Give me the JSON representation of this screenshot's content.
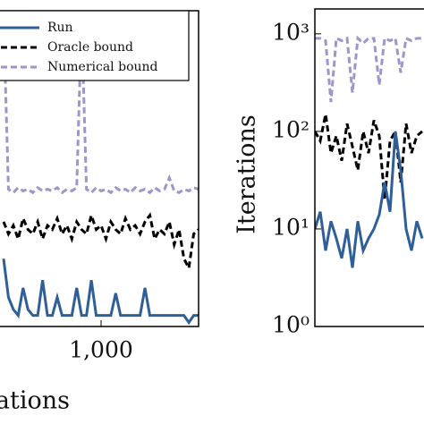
{
  "chart_data": [
    {
      "type": "line",
      "xlabel": "Iterations",
      "ylog": true,
      "ylim": [
        1,
        1800
      ],
      "xlim": [
        0,
        1200
      ],
      "xticks": [
        {
          "value": 1000,
          "label": "1,000"
        }
      ],
      "legend": "upper right",
      "x": [
        800,
        810,
        820,
        830,
        840,
        850,
        860,
        870,
        880,
        890,
        900,
        910,
        920,
        930,
        940,
        950,
        960,
        970,
        980,
        990,
        1000,
        1010,
        1020,
        1030,
        1040,
        1050,
        1060,
        1070,
        1080,
        1090,
        1100,
        1110,
        1120,
        1130,
        1140,
        1150,
        1160,
        1170,
        1180,
        1190,
        1200
      ],
      "series": [
        {
          "name": "Run",
          "color": "#2f5f98",
          "dash": false,
          "values": [
            5,
            2,
            1.5,
            1.3,
            2.5,
            1.5,
            1.3,
            1.3,
            3,
            1.3,
            1.3,
            2,
            1.3,
            1.3,
            1.3,
            2.5,
            1.3,
            1.3,
            3,
            1.3,
            1.3,
            1.3,
            1.3,
            2.2,
            1.3,
            1.3,
            1.3,
            1.3,
            1.3,
            2.5,
            1.3,
            1.3,
            1.3,
            1.3,
            1.3,
            1.3,
            1.3,
            1.3,
            1.1,
            1.3,
            1.3
          ]
        },
        {
          "name": "Oracle bound",
          "color": "#000000",
          "dash": true,
          "values": [
            12,
            9,
            11,
            8,
            13,
            10,
            9,
            12,
            8,
            11,
            10,
            13,
            9,
            11,
            8,
            12,
            10,
            9,
            14,
            10,
            11,
            8,
            12,
            10,
            9,
            13,
            10,
            11,
            9,
            12,
            14,
            8,
            10,
            9,
            12,
            7,
            10,
            5,
            4,
            9,
            10
          ]
        },
        {
          "name": "Numerical bound",
          "color": "#9c97c8",
          "dash": true,
          "values": [
            1500,
            26,
            24,
            27,
            25,
            26,
            24,
            27,
            25,
            26,
            25,
            27,
            24,
            26,
            25,
            27,
            1500,
            26,
            24,
            27,
            25,
            26,
            24,
            27,
            25,
            26,
            24,
            27,
            25,
            26,
            24,
            27,
            25,
            26,
            34,
            25,
            24,
            26,
            25,
            27,
            26
          ]
        }
      ]
    },
    {
      "type": "line",
      "ylabel": "Iterations",
      "ylog": true,
      "ylim": [
        1,
        1800
      ],
      "xlim": [
        0,
        100
      ],
      "yticks": [
        {
          "value": 1,
          "label": "10⁰"
        },
        {
          "value": 10,
          "label": "10¹"
        },
        {
          "value": 100,
          "label": "10²"
        },
        {
          "value": 1000,
          "label": "10³"
        }
      ],
      "x": [
        0,
        2,
        4,
        6,
        8,
        10,
        12,
        14,
        16,
        18,
        20,
        22,
        24,
        26,
        28,
        30,
        32,
        34,
        36,
        38,
        40
      ],
      "series": [
        {
          "color": "#9c97c8",
          "dash": true,
          "values": [
            900,
            900,
            850,
            200,
            900,
            850,
            900,
            250,
            900,
            800,
            900,
            900,
            300,
            900,
            850,
            900,
            400,
            900,
            850,
            900,
            900
          ]
        },
        {
          "color": "#000000",
          "dash": true,
          "values": [
            100,
            80,
            150,
            60,
            90,
            50,
            120,
            70,
            40,
            100,
            60,
            130,
            90,
            20,
            80,
            100,
            30,
            120,
            60,
            90,
            100
          ]
        },
        {
          "color": "#2f5f98",
          "dash": false,
          "values": [
            10,
            15,
            6,
            12,
            8,
            5,
            10,
            4,
            12,
            6,
            8,
            10,
            14,
            30,
            15,
            100,
            40,
            10,
            6,
            12,
            8
          ]
        }
      ]
    }
  ]
}
